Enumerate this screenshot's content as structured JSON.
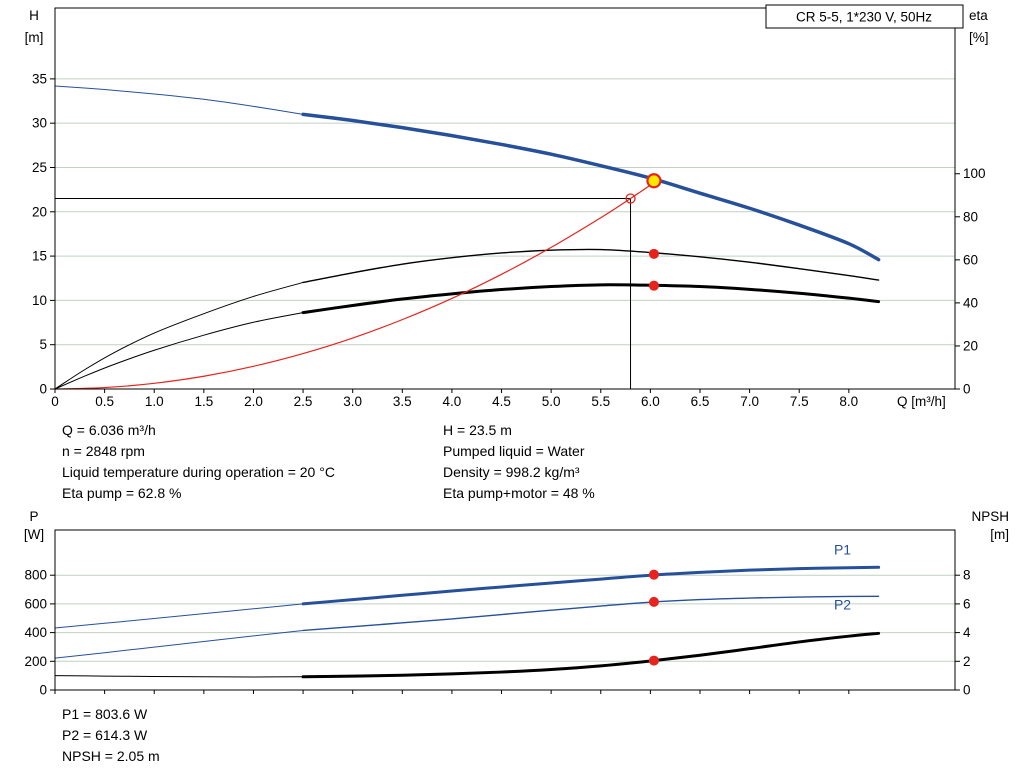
{
  "title_box": "CR 5-5, 1*230 V, 50Hz",
  "colors": {
    "curve_blue": "#27509b",
    "curve_black": "#000000",
    "red": "#e8231d",
    "op_yellow": "#ffe800",
    "grid": "#c2d1c2"
  },
  "info": {
    "top_left": [
      "Q = 6.036 m³/h",
      "n = 2848 rpm",
      "Liquid temperature during operation = 20 °C",
      "Eta pump = 62.8 %"
    ],
    "top_right": [
      "H = 23.5 m",
      "Pumped liquid = Water",
      "Density = 998.2 kg/m³",
      "Eta pump+motor = 48 %"
    ],
    "bottom": [
      "P1 = 803.6 W",
      "P2 = 614.3 W",
      "NPSH = 2.05 m"
    ]
  },
  "chart_data": [
    {
      "type": "line",
      "id": "head_eta_chart",
      "title_box": "CR 5-5, 1*230 V, 50Hz",
      "x_axis": {
        "label": "Q [m³/h]",
        "min": 0,
        "max": 9.07,
        "ticks": [
          0,
          0.5,
          1,
          1.5,
          2,
          2.5,
          3,
          3.5,
          4,
          4.5,
          5,
          5.5,
          6,
          6.5,
          7,
          7.5,
          8
        ]
      },
      "y_left": {
        "title": "H",
        "unit": "[m]",
        "min": 0,
        "max": 43,
        "ticks": [
          0,
          5,
          10,
          15,
          20,
          25,
          30,
          35
        ]
      },
      "y_right": {
        "title": "eta",
        "unit": "[%]",
        "min": 0,
        "max": 177,
        "ticks": [
          0,
          20,
          40,
          60,
          80,
          100
        ]
      },
      "crosshair": {
        "q": 5.8,
        "value": 21.5,
        "axis": "left"
      },
      "series": [
        {
          "name": "head-curve-ext",
          "axis": "left",
          "color": "#27509b",
          "width": 1,
          "points": [
            [
              0,
              34.2
            ],
            [
              0.5,
              33.8
            ],
            [
              1,
              33.3
            ],
            [
              1.5,
              32.7
            ],
            [
              2,
              31.9
            ],
            [
              2.5,
              31
            ]
          ]
        },
        {
          "name": "head-curve",
          "axis": "left",
          "color": "#27509b",
          "width": 3.5,
          "points": [
            [
              2.5,
              31
            ],
            [
              3,
              30.3
            ],
            [
              3.5,
              29.5
            ],
            [
              4,
              28.6
            ],
            [
              4.5,
              27.6
            ],
            [
              5,
              26.5
            ],
            [
              5.5,
              25.2
            ],
            [
              6,
              23.8
            ],
            [
              6.5,
              22.1
            ],
            [
              7,
              20.4
            ],
            [
              7.5,
              18.5
            ],
            [
              8,
              16.4
            ],
            [
              8.3,
              14.6
            ]
          ]
        },
        {
          "name": "eta-pump-ext",
          "axis": "right",
          "color": "#000000",
          "width": 1,
          "points": [
            [
              0,
              0
            ],
            [
              0.3,
              9
            ],
            [
              0.6,
              17
            ],
            [
              1,
              26
            ],
            [
              1.5,
              35
            ],
            [
              2,
              43
            ],
            [
              2.5,
              49.5
            ]
          ]
        },
        {
          "name": "eta-pump-curve",
          "axis": "right",
          "color": "#000000",
          "width": 1.4,
          "points": [
            [
              2.5,
              49.5
            ],
            [
              3,
              54
            ],
            [
              3.5,
              58
            ],
            [
              4,
              61
            ],
            [
              4.5,
              63.2
            ],
            [
              5,
              64.5
            ],
            [
              5.5,
              64.8
            ],
            [
              6,
              63.4
            ],
            [
              6.5,
              61.4
            ],
            [
              7,
              58.9
            ],
            [
              7.5,
              55.9
            ],
            [
              8,
              52.7
            ],
            [
              8.3,
              50.6
            ]
          ]
        },
        {
          "name": "eta-pump-motor-ext",
          "axis": "right",
          "color": "#000000",
          "width": 1,
          "points": [
            [
              0,
              0
            ],
            [
              0.3,
              6
            ],
            [
              0.6,
              11.5
            ],
            [
              1,
              18
            ],
            [
              1.5,
              25
            ],
            [
              2,
              31
            ],
            [
              2.5,
              35.5
            ]
          ]
        },
        {
          "name": "eta-pump-motor-curve",
          "axis": "right",
          "color": "#000000",
          "width": 3,
          "points": [
            [
              2.5,
              35.5
            ],
            [
              3,
              38.8
            ],
            [
              3.5,
              41.8
            ],
            [
              4,
              44.2
            ],
            [
              4.5,
              46.2
            ],
            [
              5,
              47.6
            ],
            [
              5.5,
              48.4
            ],
            [
              6,
              48.2
            ],
            [
              6.5,
              47.6
            ],
            [
              7,
              46.3
            ],
            [
              7.5,
              44.5
            ],
            [
              8,
              42.2
            ],
            [
              8.3,
              40.6
            ]
          ]
        },
        {
          "name": "system-curve",
          "axis": "left",
          "color": "#e8231d",
          "width": 1.2,
          "points": [
            [
              0,
              0
            ],
            [
              0.5,
              0.16
            ],
            [
              1,
              0.64
            ],
            [
              1.5,
              1.44
            ],
            [
              2,
              2.56
            ],
            [
              2.5,
              4
            ],
            [
              3,
              5.75
            ],
            [
              3.5,
              7.83
            ],
            [
              4,
              10.22
            ],
            [
              4.5,
              12.94
            ],
            [
              5,
              15.98
            ],
            [
              5.5,
              19.33
            ],
            [
              5.8,
              21.5
            ],
            [
              6.05,
              23.4
            ]
          ]
        }
      ],
      "markers": [
        {
          "name": "duty-point-request-circle",
          "style": "open",
          "axis": "left",
          "q": 5.8,
          "value": 21.5
        },
        {
          "name": "operating-point",
          "style": "op",
          "axis": "left",
          "q": 6.036,
          "value": 23.5
        },
        {
          "name": "eta-pump-point",
          "style": "dot",
          "axis": "right",
          "q": 6.036,
          "value": 62.8
        },
        {
          "name": "eta-pump-motor-point",
          "style": "dot",
          "axis": "right",
          "q": 6.036,
          "value": 48
        }
      ]
    },
    {
      "type": "line",
      "id": "power_npsh_chart",
      "x_axis": {
        "min": 0,
        "max": 9.07,
        "ticks": [
          0,
          0.5,
          1,
          1.5,
          2,
          2.5,
          3,
          3.5,
          4,
          4.5,
          5,
          5.5,
          6,
          6.5,
          7,
          7.5,
          8
        ]
      },
      "y_left": {
        "title": "P",
        "unit": "[W]",
        "min": 0,
        "max": 1115,
        "ticks": [
          0,
          200,
          400,
          600,
          800
        ]
      },
      "y_right": {
        "title": "NPSH",
        "unit": "[m]",
        "min": 0,
        "max": 11.15,
        "ticks": [
          0,
          2,
          4,
          6,
          8
        ]
      },
      "series": [
        {
          "name": "p1-ext",
          "axis": "left",
          "color": "#27509b",
          "width": 1,
          "points": [
            [
              0,
              432
            ],
            [
              0.5,
              465
            ],
            [
              1,
              498
            ],
            [
              1.5,
              532
            ],
            [
              2,
              566
            ],
            [
              2.5,
              600
            ]
          ]
        },
        {
          "name": "p1-curve",
          "axis": "left",
          "color": "#27509b",
          "width": 3,
          "points": [
            [
              2.5,
              600
            ],
            [
              3,
              630
            ],
            [
              3.5,
              660
            ],
            [
              4,
              690
            ],
            [
              4.5,
              718
            ],
            [
              5,
              746
            ],
            [
              5.5,
              773
            ],
            [
              6,
              800
            ],
            [
              6.5,
              820
            ],
            [
              7,
              835
            ],
            [
              7.5,
              846
            ],
            [
              8,
              852
            ],
            [
              8.3,
              855
            ]
          ]
        },
        {
          "name": "p2-ext",
          "axis": "left",
          "color": "#27509b",
          "width": 1,
          "points": [
            [
              0,
              222
            ],
            [
              0.5,
              260
            ],
            [
              1,
              299
            ],
            [
              1.5,
              338
            ],
            [
              2,
              377
            ],
            [
              2.5,
              415
            ]
          ]
        },
        {
          "name": "p2-curve",
          "axis": "left",
          "color": "#27509b",
          "width": 1.4,
          "points": [
            [
              2.5,
              415
            ],
            [
              3,
              441
            ],
            [
              3.5,
              468
            ],
            [
              4,
              495
            ],
            [
              4.5,
              526
            ],
            [
              5,
              556
            ],
            [
              5.5,
              585
            ],
            [
              6,
              612
            ],
            [
              6.5,
              630
            ],
            [
              7,
              641
            ],
            [
              7.5,
              648
            ],
            [
              8,
              652
            ],
            [
              8.3,
              653
            ]
          ]
        },
        {
          "name": "npsh-ext",
          "axis": "right",
          "color": "#000000",
          "width": 1,
          "points": [
            [
              0,
              1
            ],
            [
              0.5,
              0.97
            ],
            [
              1,
              0.94
            ],
            [
              1.5,
              0.92
            ],
            [
              2,
              0.91
            ],
            [
              2.5,
              0.92
            ]
          ]
        },
        {
          "name": "npsh-curve",
          "axis": "right",
          "color": "#000000",
          "width": 3,
          "points": [
            [
              2.5,
              0.92
            ],
            [
              3,
              0.97
            ],
            [
              3.5,
              1.03
            ],
            [
              4,
              1.12
            ],
            [
              4.5,
              1.25
            ],
            [
              5,
              1.43
            ],
            [
              5.5,
              1.68
            ],
            [
              6,
              2.02
            ],
            [
              6.5,
              2.42
            ],
            [
              7,
              2.88
            ],
            [
              7.5,
              3.35
            ],
            [
              8,
              3.75
            ],
            [
              8.3,
              3.95
            ]
          ]
        }
      ],
      "markers": [
        {
          "name": "p1-point",
          "style": "dot",
          "axis": "left",
          "q": 6.036,
          "value": 803.6
        },
        {
          "name": "p2-point",
          "style": "dot",
          "axis": "left",
          "q": 6.036,
          "value": 614.3
        },
        {
          "name": "npsh-point",
          "style": "dot",
          "axis": "right",
          "q": 6.036,
          "value": 2.05
        }
      ],
      "labels": [
        {
          "text": "P1",
          "q": 7.85,
          "value": 945,
          "axis": "left",
          "color": "#27509b"
        },
        {
          "text": "P2",
          "q": 7.85,
          "value": 560,
          "axis": "left",
          "color": "#27509b"
        }
      ]
    }
  ]
}
